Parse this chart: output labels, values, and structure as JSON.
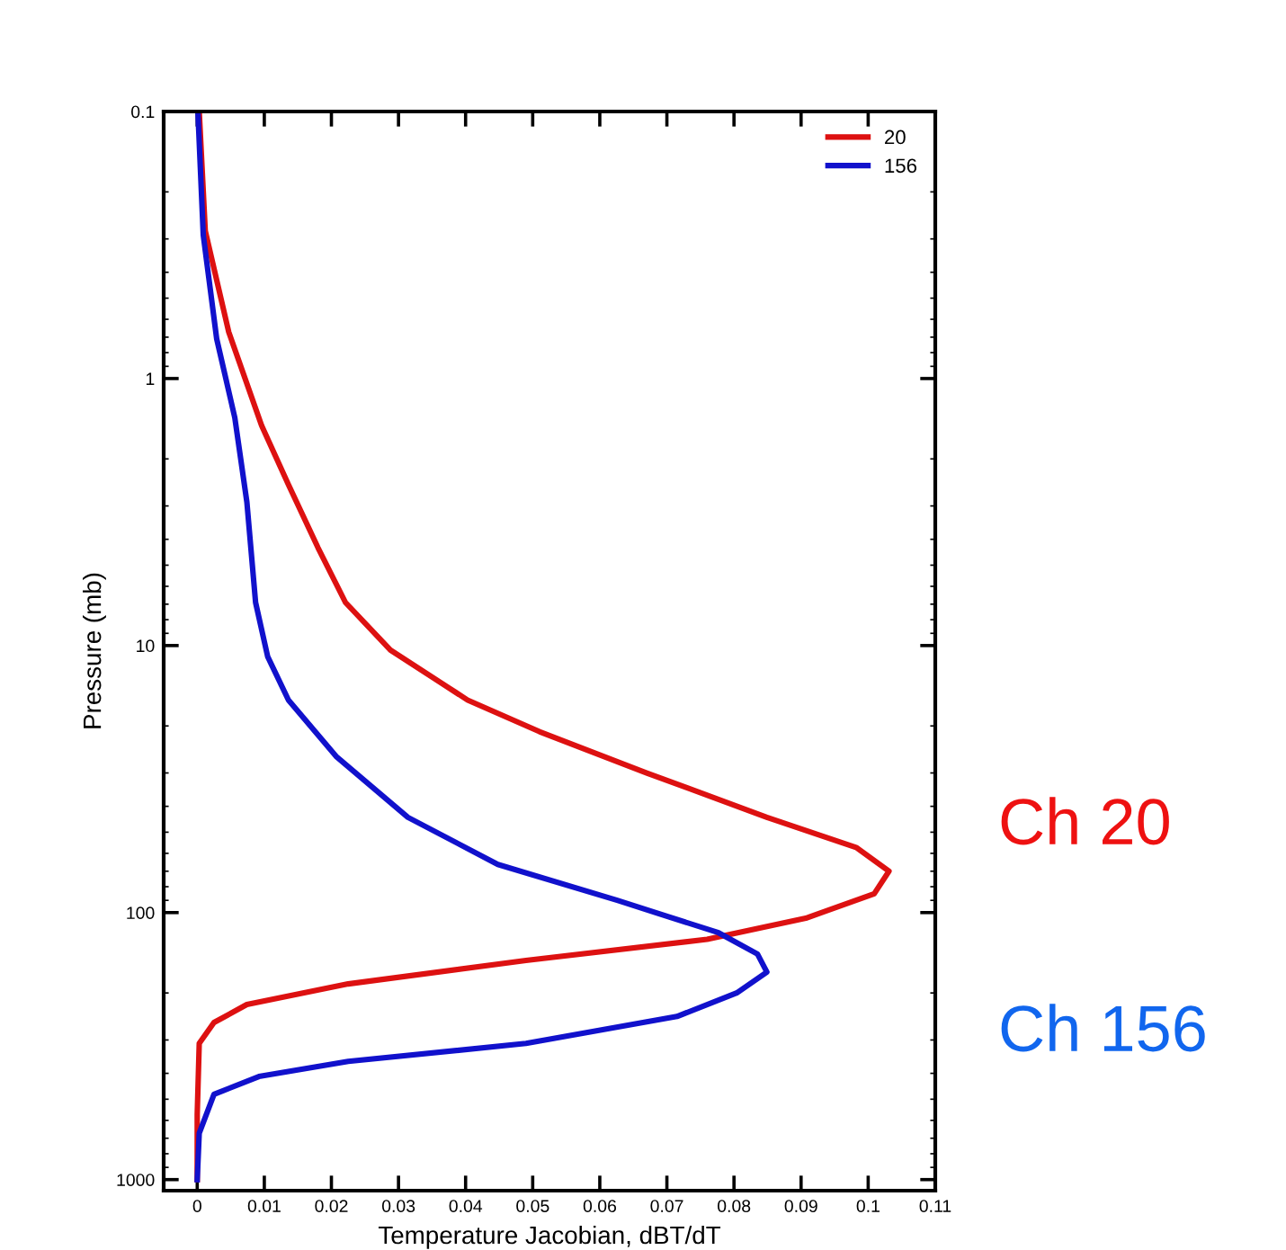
{
  "chart_data": {
    "type": "line",
    "xlabel": "Temperature Jacobian, dBT/dT",
    "ylabel": "Pressure (mb)",
    "log": "y",
    "grid": false,
    "legend": "top right",
    "marker": "none",
    "line_style": "solid",
    "xlim": [
      -0.005,
      0.11
    ],
    "xticks": [
      0,
      0.01,
      0.02,
      0.03,
      0.04,
      0.05,
      0.06,
      0.07,
      0.08,
      0.09,
      0.1,
      0.11
    ],
    "ylim": [
      1100,
      0.1
    ],
    "yticks": [
      0.1,
      1,
      10,
      100,
      1000
    ],
    "series": [
      {
        "name": "20",
        "color": "#dd1111",
        "x": [
          0.0003,
          0.0012,
          0.0047,
          0.0096,
          0.0136,
          0.018,
          0.0221,
          0.0288,
          0.0403,
          0.051,
          0.067,
          0.0849,
          0.0982,
          0.1031,
          0.1009,
          0.0907,
          0.076,
          0.049,
          0.0225,
          0.0074,
          0.0025,
          0.0003,
          0,
          0
        ],
        "values": [
          0.1,
          0.28,
          0.67,
          1.5,
          2.5,
          4.3,
          6.9,
          10.4,
          16,
          21,
          30,
          44,
          57,
          70,
          85,
          105,
          126,
          151,
          185,
          221,
          258,
          309,
          570,
          1000
        ]
      },
      {
        "name": "156",
        "color": "#1111cc",
        "x": [
          0.0001,
          0.0009,
          0.0029,
          0.0056,
          0.0074,
          0.0087,
          0.0105,
          0.0136,
          0.0207,
          0.0314,
          0.0448,
          0.0626,
          0.0777,
          0.0835,
          0.0849,
          0.0804,
          0.0715,
          0.049,
          0.0225,
          0.0092,
          0.0025,
          0.0003,
          0
        ],
        "values": [
          0.1,
          0.29,
          0.71,
          1.4,
          2.9,
          6.9,
          11,
          16,
          26,
          44,
          66,
          90,
          119,
          143,
          167,
          200,
          245,
          309,
          361,
          411,
          479,
          670,
          1000
        ]
      }
    ],
    "annotations": [
      "Ch 20",
      "Ch 156"
    ]
  }
}
